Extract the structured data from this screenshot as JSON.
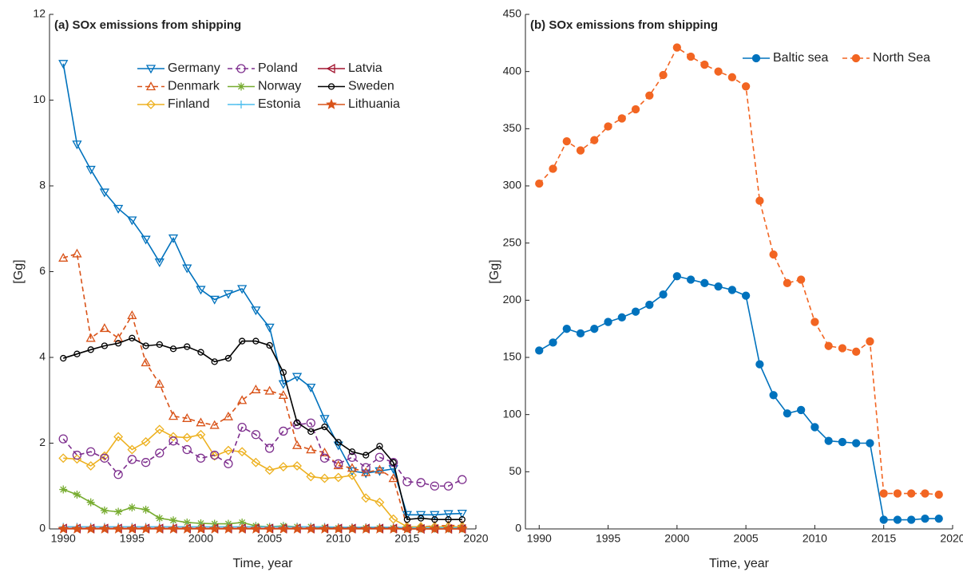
{
  "chart_data": [
    {
      "type": "line",
      "title": "(a) SOx emissions from shipping",
      "x_label": "Time, year",
      "y_label": "[Gg]",
      "x": [
        1990,
        1991,
        1992,
        1993,
        1994,
        1995,
        1996,
        1997,
        1998,
        1999,
        2000,
        2001,
        2002,
        2003,
        2004,
        2005,
        2006,
        2007,
        2008,
        2009,
        2010,
        2011,
        2012,
        2013,
        2014,
        2015,
        2016,
        2017,
        2018,
        2019
      ],
      "xlim": [
        1989,
        2020
      ],
      "xticks": [
        1990,
        1995,
        2000,
        2005,
        2010,
        2015,
        2020
      ],
      "ylim": [
        0,
        12
      ],
      "yticks": [
        0,
        2,
        4,
        6,
        8,
        10,
        12
      ],
      "legend": "top",
      "legend_columns": 3,
      "series": [
        {
          "name": "Germany",
          "color": "#0072BD",
          "marker": "tri-down",
          "dashed": false,
          "values": [
            10.85,
            8.97,
            8.38,
            7.85,
            7.47,
            7.2,
            6.75,
            6.22,
            6.78,
            6.08,
            5.58,
            5.35,
            5.48,
            5.6,
            5.1,
            4.7,
            3.38,
            3.55,
            3.3,
            2.57,
            1.95,
            1.35,
            1.3,
            1.35,
            1.4,
            0.33,
            0.33,
            0.33,
            0.35,
            0.36
          ]
        },
        {
          "name": "Denmark",
          "color": "#D95319",
          "marker": "tri-up",
          "dashed": true,
          "values": [
            6.32,
            6.42,
            4.45,
            4.68,
            4.45,
            4.98,
            3.88,
            3.38,
            2.63,
            2.58,
            2.48,
            2.42,
            2.62,
            3.0,
            3.25,
            3.22,
            3.12,
            1.95,
            1.85,
            1.78,
            1.48,
            1.42,
            1.32,
            1.38,
            1.18,
            0.05,
            0.05,
            0.07,
            0.08,
            0.08
          ]
        },
        {
          "name": "Finland",
          "color": "#EDB120",
          "marker": "diamond",
          "dashed": false,
          "values": [
            1.65,
            1.63,
            1.47,
            1.7,
            2.15,
            1.85,
            2.03,
            2.32,
            2.15,
            2.13,
            2.2,
            1.7,
            1.83,
            1.8,
            1.55,
            1.37,
            1.45,
            1.47,
            1.22,
            1.18,
            1.2,
            1.25,
            0.72,
            0.62,
            0.23,
            0.05,
            0.05,
            0.05,
            0.05,
            0.05
          ]
        },
        {
          "name": "Poland",
          "color": "#7E2F8E",
          "marker": "circle",
          "dashed": true,
          "values": [
            2.1,
            1.72,
            1.8,
            1.65,
            1.27,
            1.62,
            1.55,
            1.77,
            2.05,
            1.85,
            1.65,
            1.72,
            1.52,
            2.37,
            2.2,
            1.88,
            2.28,
            2.43,
            2.47,
            1.65,
            1.52,
            1.67,
            1.43,
            1.67,
            1.55,
            1.1,
            1.08,
            1.0,
            1.0,
            1.15
          ]
        },
        {
          "name": "Norway",
          "color": "#77AC30",
          "marker": "asterisk",
          "dashed": false,
          "values": [
            0.92,
            0.8,
            0.62,
            0.43,
            0.4,
            0.5,
            0.45,
            0.25,
            0.2,
            0.15,
            0.13,
            0.12,
            0.12,
            0.15,
            0.07,
            0.05,
            0.07,
            0.05,
            0.05,
            0.03,
            0.02,
            0.02,
            0.02,
            0.02,
            0.02,
            0.01,
            0.01,
            0.01,
            0.01,
            0.01
          ]
        },
        {
          "name": "Estonia",
          "color": "#4DBEEE",
          "marker": "plus",
          "dashed": false,
          "values": [
            0.05,
            0.05,
            0.05,
            0.05,
            0.05,
            0.05,
            0.05,
            0.05,
            0.05,
            0.05,
            0.05,
            0.05,
            0.05,
            0.05,
            0.05,
            0.05,
            0.05,
            0.05,
            0.05,
            0.05,
            0.04,
            0.04,
            0.04,
            0.04,
            0.04,
            0.03,
            0.03,
            0.03,
            0.03,
            0.03
          ]
        },
        {
          "name": "Latvia",
          "color": "#A2142F",
          "marker": "tri-left",
          "dashed": false,
          "values": [
            0.01,
            0.01,
            0.01,
            0.01,
            0.01,
            0.01,
            0.01,
            0.01,
            0.01,
            0.01,
            0.01,
            0.01,
            0.01,
            0.01,
            0.01,
            0.01,
            0.01,
            0.01,
            0.01,
            0.01,
            0.01,
            0.01,
            0.01,
            0.01,
            0.01,
            0.0,
            0.0,
            0.0,
            0.0,
            0.0
          ]
        },
        {
          "name": "Sweden",
          "color": "#000000",
          "marker": "circle-small",
          "dashed": false,
          "values": [
            3.98,
            4.08,
            4.18,
            4.27,
            4.33,
            4.45,
            4.27,
            4.3,
            4.2,
            4.25,
            4.12,
            3.9,
            3.98,
            4.38,
            4.38,
            4.28,
            3.65,
            2.48,
            2.27,
            2.38,
            2.02,
            1.8,
            1.72,
            1.93,
            1.55,
            0.22,
            0.25,
            0.22,
            0.22,
            0.22
          ]
        },
        {
          "name": "Lithuania",
          "color": "#D95319",
          "marker": "star",
          "dashed": false,
          "values": [
            0.0,
            0.0,
            0.0,
            0.0,
            0.0,
            0.0,
            0.0,
            0.0,
            0.0,
            0.0,
            0.0,
            0.0,
            0.0,
            0.0,
            0.0,
            0.0,
            0.0,
            0.0,
            0.0,
            0.0,
            0.0,
            0.0,
            0.0,
            0.0,
            0.0,
            0.0,
            0.0,
            0.0,
            0.0,
            0.0
          ]
        }
      ]
    },
    {
      "type": "line",
      "title": "(b) SOx emissions from shipping",
      "x_label": "Time, year",
      "y_label": "[Gg]",
      "x": [
        1990,
        1991,
        1992,
        1993,
        1994,
        1995,
        1996,
        1997,
        1998,
        1999,
        2000,
        2001,
        2002,
        2003,
        2004,
        2005,
        2006,
        2007,
        2008,
        2009,
        2010,
        2011,
        2012,
        2013,
        2014,
        2015,
        2016,
        2017,
        2018,
        2019
      ],
      "xlim": [
        1989,
        2020
      ],
      "xticks": [
        1990,
        1995,
        2000,
        2005,
        2010,
        2015,
        2020
      ],
      "ylim": [
        0,
        450
      ],
      "yticks": [
        0,
        50,
        100,
        150,
        200,
        250,
        300,
        350,
        400,
        450
      ],
      "legend": "top-right",
      "legend_columns": 2,
      "series": [
        {
          "name": "Baltic sea",
          "color": "#0072BD",
          "marker": "dot",
          "dashed": false,
          "values": [
            156,
            163,
            175,
            171,
            175,
            181,
            185,
            190,
            196,
            205,
            221,
            218,
            215,
            212,
            209,
            204,
            144,
            117,
            101,
            104,
            89,
            77,
            76,
            75,
            75,
            8,
            8,
            8,
            9,
            9
          ]
        },
        {
          "name": "North Sea",
          "color": "#F26522",
          "marker": "dot",
          "dashed": true,
          "values": [
            302,
            315,
            339,
            331,
            340,
            352,
            359,
            367,
            379,
            397,
            421,
            413,
            406,
            400,
            395,
            387,
            287,
            240,
            215,
            218,
            181,
            160,
            158,
            155,
            164,
            31,
            31,
            31,
            31,
            30
          ]
        }
      ]
    }
  ]
}
